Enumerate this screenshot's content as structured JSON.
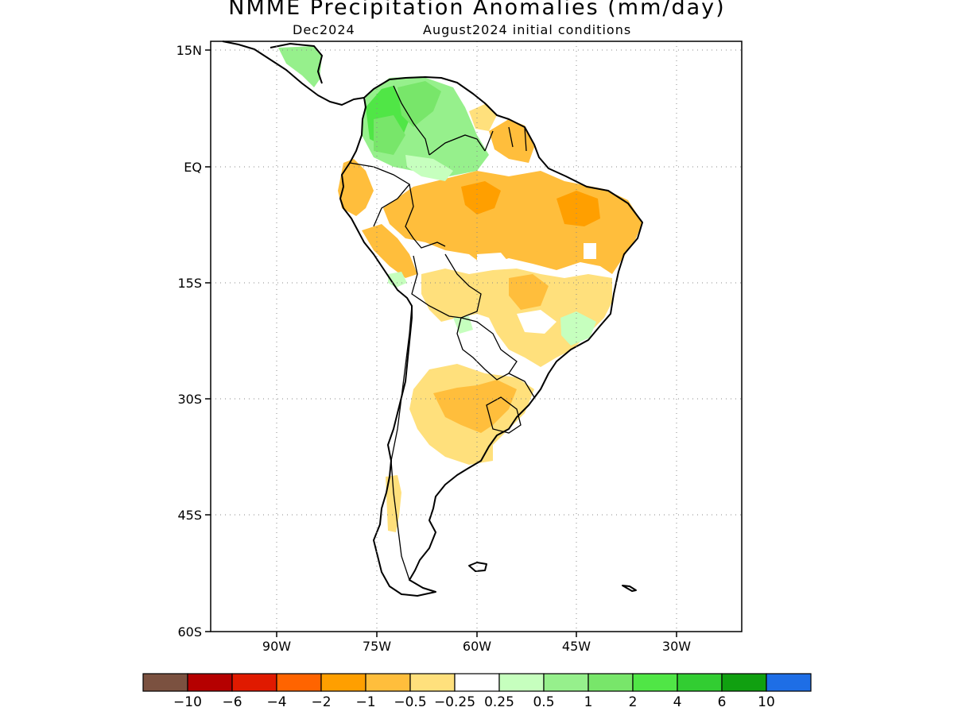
{
  "title": "NMME Precipitation Anomalies (mm/day)",
  "subtitle_left": "Dec2024",
  "subtitle_right": "August2024 initial conditions",
  "lat_labels": [
    "15N",
    "EQ",
    "15S",
    "30S",
    "45S",
    "60S"
  ],
  "lon_labels": [
    "90W",
    "75W",
    "60W",
    "45W",
    "30W"
  ],
  "colorbar": {
    "colors": [
      "#7b5140",
      "#b50000",
      "#e01a00",
      "#ff6400",
      "#ff9f00",
      "#ffbe3c",
      "#ffe07c",
      "#ffffff",
      "#c6ffbe",
      "#96f08c",
      "#78e66a",
      "#50e646",
      "#32cd32",
      "#10a010",
      "#1e6ee6"
    ],
    "labels": [
      "−10",
      "−6",
      "−4",
      "−2",
      "−1",
      "−0.5",
      "−0.25",
      "0.25",
      "0.5",
      "1",
      "2",
      "4",
      "6",
      "10"
    ]
  },
  "map_extent": {
    "lon": [
      -100,
      -20
    ],
    "lat": [
      -60,
      16
    ]
  }
}
